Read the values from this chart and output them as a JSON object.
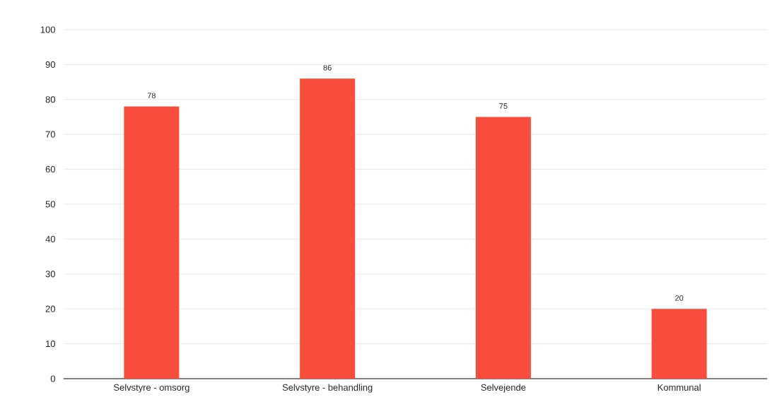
{
  "chart_data": {
    "type": "bar",
    "categories": [
      "Selvstyre - omsorg",
      "Selvstyre - behandling",
      "Selvejende",
      "Kommunal"
    ],
    "values": [
      78,
      86,
      75,
      20
    ],
    "color": "#f94c3b",
    "ylim": [
      0,
      100
    ],
    "yticks": [
      0,
      10,
      20,
      30,
      40,
      50,
      60,
      70,
      80,
      90,
      100
    ],
    "grid": "y",
    "data_labels": true
  }
}
